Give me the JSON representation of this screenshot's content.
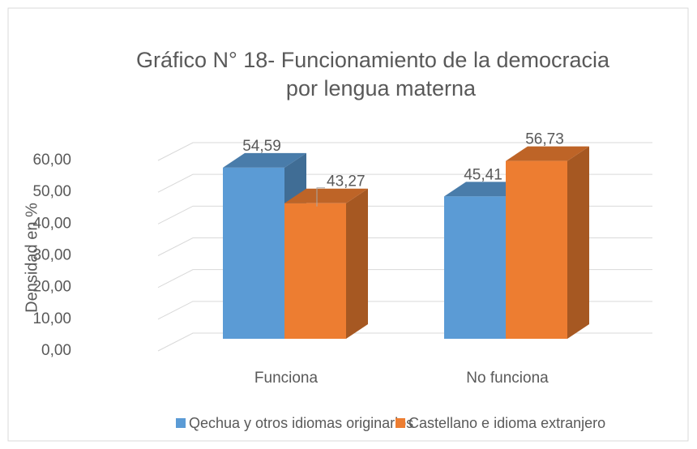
{
  "chart_data": {
    "type": "bar3d",
    "title": [
      "Gráfico N° 18-  Funcionamiento de la democracia",
      "por lengua materna"
    ],
    "y_label": "Densidad en %",
    "categories": [
      "Funciona",
      "No funciona"
    ],
    "series": [
      {
        "name": "Qechua y otros idiomas originarios",
        "color": "#5b9bd5",
        "values": [
          54.59,
          45.41
        ],
        "value_labels": [
          "54,59",
          "45,41"
        ]
      },
      {
        "name": "Castellano e idioma extranjero",
        "color": "#ed7d31",
        "values": [
          43.27,
          56.73
        ],
        "value_labels": [
          "43,27",
          "56,73"
        ]
      }
    ],
    "ylim": [
      0,
      60
    ],
    "yticks": [
      {
        "value": 0,
        "label": "0,00"
      },
      {
        "value": 10,
        "label": "10,00"
      },
      {
        "value": 20,
        "label": "20,00"
      },
      {
        "value": 30,
        "label": "30,00"
      },
      {
        "value": 40,
        "label": "40,00"
      },
      {
        "value": 50,
        "label": "50,00"
      },
      {
        "value": 60,
        "label": "60,00"
      }
    ],
    "grid": true
  }
}
